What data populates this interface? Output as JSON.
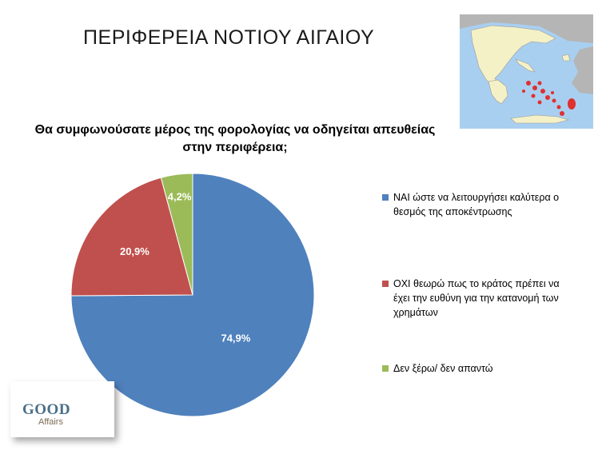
{
  "slide": {
    "title": "ΠΕΡΙΦΕΡΕΙΑ ΝΟΤΙΟΥ ΑΙΓΑΙΟΥ"
  },
  "question": {
    "line1": "Θα συμφωνούσατε μέρος της φορολογίας να οδηγείται απευθείας",
    "line2": "στην περιφέρεια;"
  },
  "logo": {
    "word1": "GOOD",
    "word2": "Affairs"
  },
  "colors": {
    "sea": "#a9cff0",
    "land": "#f4f1c6",
    "neighbor": "#b5b5b5",
    "region": "#e03030"
  },
  "chart_data": {
    "type": "pie",
    "title": "",
    "start_angle_deg": 0,
    "direction": "clockwise",
    "slices": [
      {
        "label": "ΝΑΙ ώστε να λειτουργήσει καλύτερα ο θεσμός της αποκέντρωσης",
        "value": 74.9,
        "value_label": "74,9%",
        "color": "#4f81bd"
      },
      {
        "label": "ΟΧΙ θεωρώ πως το κράτος πρέπει να έχει την ευθύνη για την κατανομή των χρημάτων",
        "value": 20.9,
        "value_label": "20,9%",
        "color": "#c0504d"
      },
      {
        "label": "Δεν ξέρω/ δεν απαντώ",
        "value": 4.2,
        "value_label": "4,2%",
        "color": "#9bbb59"
      }
    ],
    "legend_position": "right"
  }
}
